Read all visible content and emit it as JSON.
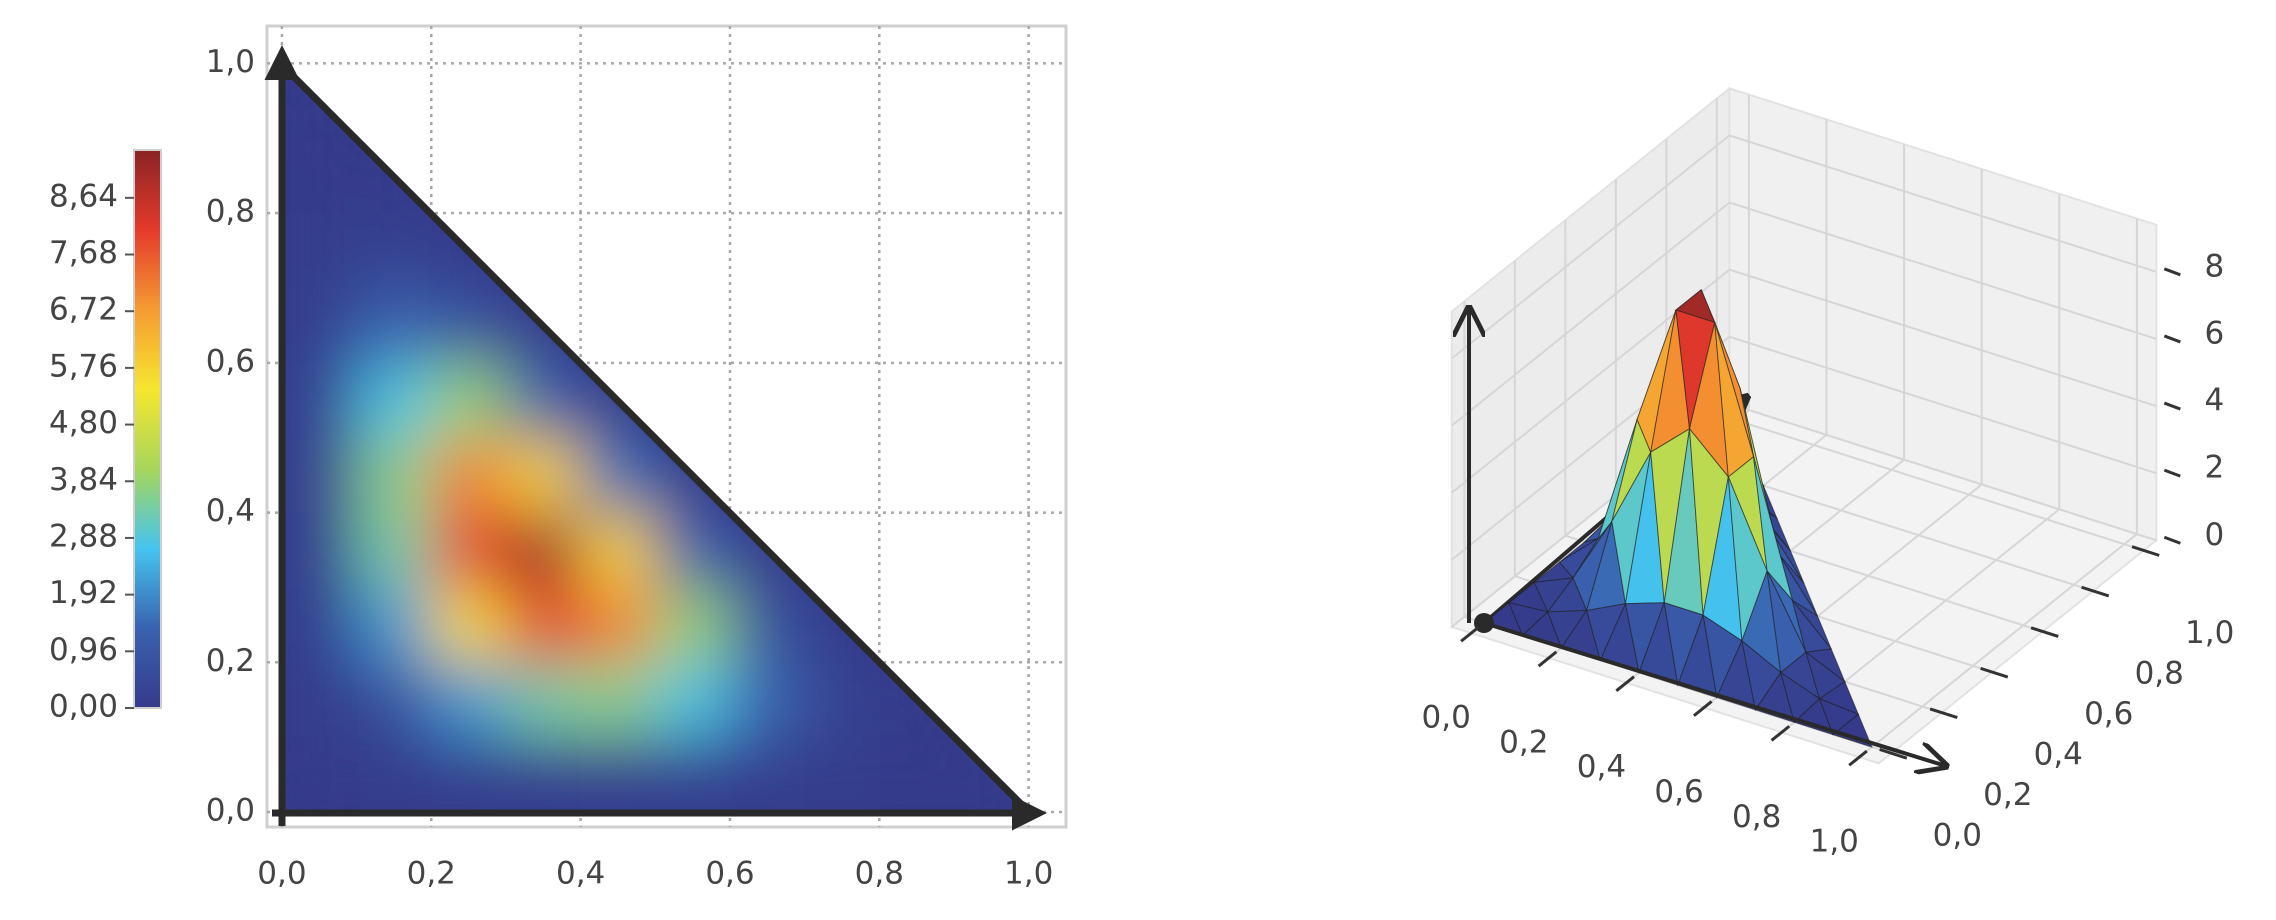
{
  "chart_data": [
    {
      "type": "heatmap",
      "x": [
        0.05,
        0.15,
        0.25,
        0.35,
        0.45,
        0.55,
        0.65,
        0.75,
        0.85,
        0.95
      ],
      "y": [
        0.05,
        0.15,
        0.25,
        0.35,
        0.45,
        0.55,
        0.65,
        0.75,
        0.85,
        0.95
      ],
      "z": [
        [
          0.002,
          0.04,
          0.124,
          0.214,
          0.263,
          0.246,
          0.171,
          0.078,
          0.014,
          0
        ],
        [
          0.04,
          0.722,
          2.105,
          3.342,
          3.637,
          2.802,
          1.37,
          0.263,
          0
        ],
        [
          0.124,
          2.105,
          5.639,
          7.923,
          7.104,
          3.843,
          0.793,
          0
        ],
        [
          0.214,
          3.342,
          7.923,
          9.172,
          5.776,
          1.318,
          0
        ],
        [
          0.263,
          3.637,
          7.104,
          5.776,
          1.534,
          0
        ],
        [
          0.246,
          2.802,
          3.843,
          1.318,
          0
        ],
        [
          0.171,
          1.37,
          0.793,
          0
        ],
        [
          0.078,
          0.263,
          0
        ],
        [
          0.014,
          0
        ],
        [
          0
        ]
      ],
      "xlim": [
        -0.02,
        1.05
      ],
      "ylim": [
        -0.02,
        1.05
      ],
      "xticks": [
        {
          "value": 0,
          "label": "0,0"
        },
        {
          "value": 0.2,
          "label": "0,2"
        },
        {
          "value": 0.4,
          "label": "0,4"
        },
        {
          "value": 0.6,
          "label": "0,6"
        },
        {
          "value": 0.8,
          "label": "0,8"
        },
        {
          "value": 1,
          "label": "1,0"
        }
      ],
      "yticks": [
        {
          "value": 0,
          "label": "0,0"
        },
        {
          "value": 0.2,
          "label": "0,2"
        },
        {
          "value": 0.4,
          "label": "0,4"
        },
        {
          "value": 0.6,
          "label": "0,6"
        },
        {
          "value": 0.8,
          "label": "0,8"
        },
        {
          "value": 1,
          "label": "1,0"
        }
      ],
      "grid": true,
      "clim": [
        0,
        9.45
      ],
      "colorbar_ticks": [
        {
          "value": 0,
          "label": "0,00"
        },
        {
          "value": 0.96,
          "label": "0,96"
        },
        {
          "value": 1.92,
          "label": "1,92"
        },
        {
          "value": 2.88,
          "label": "2,88"
        },
        {
          "value": 3.84,
          "label": "3,84"
        },
        {
          "value": 4.8,
          "label": "4,80"
        },
        {
          "value": 5.76,
          "label": "5,76"
        },
        {
          "value": 6.72,
          "label": "6,72"
        },
        {
          "value": 7.68,
          "label": "7,68"
        },
        {
          "value": 8.64,
          "label": "8,64"
        }
      ],
      "colormap": [
        "#353b8a",
        "#3a62b0",
        "#45c4f0",
        "#a7d65b",
        "#f6e62f",
        "#f59b32",
        "#e43a2c",
        "#8a2324"
      ]
    },
    {
      "type": "surface",
      "x": [
        0,
        0.1,
        0.2,
        0.3,
        0.4,
        0.5,
        0.6,
        0.7,
        0.8,
        0.9,
        1
      ],
      "y": [
        0,
        0.1,
        0.2,
        0.3,
        0.4,
        0.5,
        0.6,
        0.7,
        0.8,
        0.9,
        1
      ],
      "z": [
        [
          0,
          0,
          0,
          0,
          0,
          0,
          0,
          0,
          0,
          0,
          0
        ],
        [
          0,
          0.095,
          0.507,
          1.078,
          1.478,
          1.478,
          1.078,
          0.507,
          0.095,
          0
        ],
        [
          0,
          0.507,
          2.555,
          4.99,
          6.056,
          4.99,
          2.555,
          0.507,
          0
        ],
        [
          0,
          1.078,
          4.99,
          8.622,
          8.622,
          4.99,
          1.078,
          0
        ],
        [
          0,
          1.478,
          6.056,
          8.622,
          6.056,
          1.478,
          0
        ],
        [
          0,
          1.478,
          4.99,
          4.99,
          1.478,
          0
        ],
        [
          0,
          1.078,
          2.555,
          1.078,
          0
        ],
        [
          0,
          0.507,
          0.507,
          0
        ],
        [
          0,
          0.095,
          0
        ],
        [
          0,
          0
        ],
        [
          0
        ]
      ],
      "xlim": [
        -0.05,
        1.05
      ],
      "ylim": [
        -0.05,
        1.05
      ],
      "zlim": [
        0,
        9.4
      ],
      "xticks": [
        {
          "value": 0,
          "label": "0,0"
        },
        {
          "value": 0.2,
          "label": "0,2"
        },
        {
          "value": 0.4,
          "label": "0,4"
        },
        {
          "value": 0.6,
          "label": "0,6"
        },
        {
          "value": 0.8,
          "label": "0,8"
        },
        {
          "value": 1,
          "label": "1,0"
        }
      ],
      "yticks": [
        {
          "value": 0,
          "label": "0,0"
        },
        {
          "value": 0.2,
          "label": "0,2"
        },
        {
          "value": 0.4,
          "label": "0,4"
        },
        {
          "value": 0.6,
          "label": "0,6"
        },
        {
          "value": 0.8,
          "label": "0,8"
        },
        {
          "value": 1,
          "label": "1,0"
        }
      ],
      "zticks": [
        0,
        2,
        4,
        6,
        8
      ],
      "colormap": [
        "#353b8a",
        "#3a62b0",
        "#45c4f0",
        "#a7d65b",
        "#f6e62f",
        "#f59b32",
        "#e43a2c",
        "#8a2324"
      ]
    }
  ]
}
